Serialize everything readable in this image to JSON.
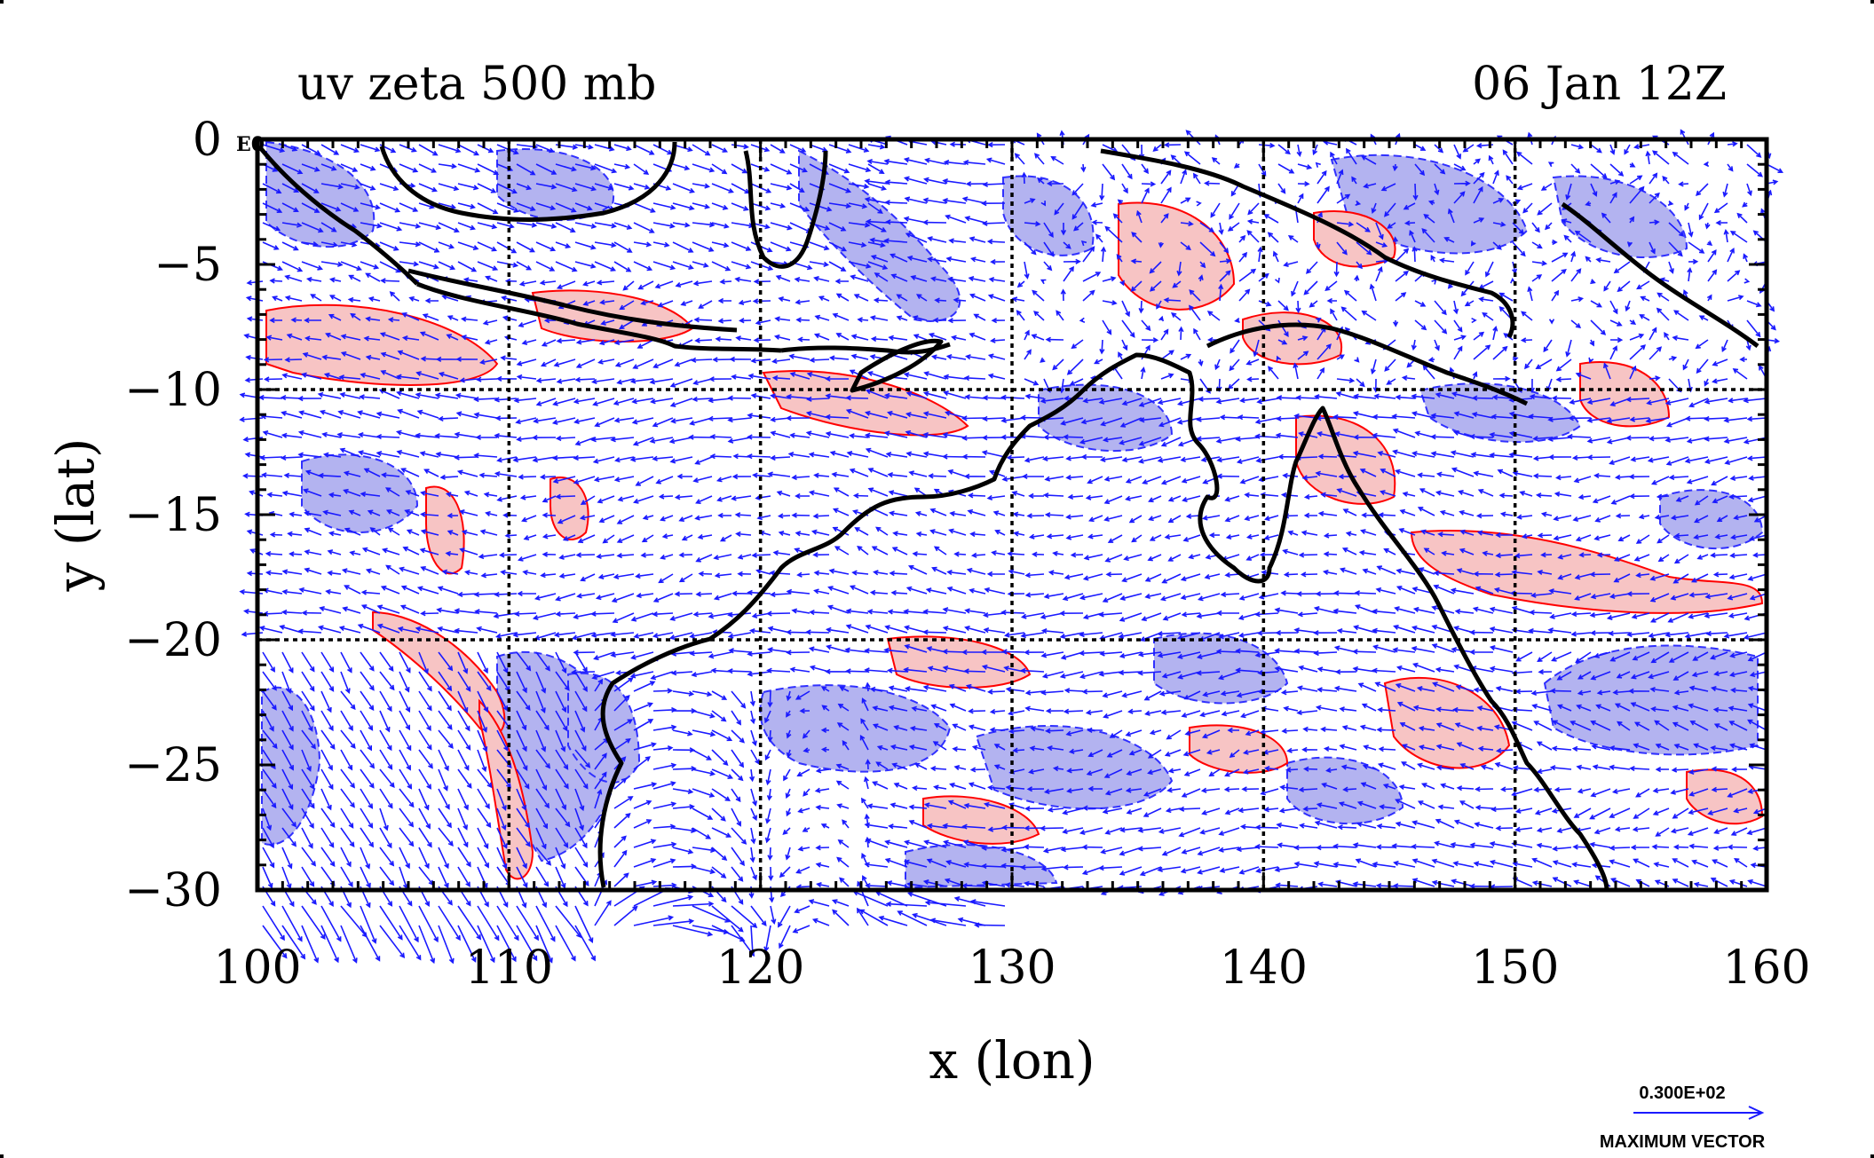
{
  "chart_data": {
    "type": "vector-contour-map",
    "title": "uv zeta 500 mb",
    "time_label": "06 Jan 12Z",
    "xlabel": "x (lon)",
    "ylabel": "y (lat)",
    "xlim": [
      100,
      160
    ],
    "ylim": [
      -30,
      0
    ],
    "x_ticks": [
      100,
      110,
      120,
      130,
      140,
      150,
      160
    ],
    "y_ticks": [
      0,
      -5,
      -10,
      -15,
      -20,
      -25,
      -30
    ],
    "x_tick_labels": [
      "100",
      "110",
      "120",
      "130",
      "140",
      "150",
      "160"
    ],
    "y_tick_labels": [
      "0",
      "−5",
      "−10",
      "−15",
      "−20",
      "−25",
      "−30"
    ],
    "grid_lon": [
      110,
      120,
      130,
      140,
      150
    ],
    "grid_lat": [
      -10,
      -20
    ],
    "corner_label": "E0",
    "legend": {
      "value_label": "0.300E+02",
      "caption": "MAXIMUM VECTOR"
    },
    "colors": {
      "positive_shade": "#f7c4c4",
      "positive_contour": "#ff0000",
      "negative_shade": "#b3b3f0",
      "negative_contour": "#0000ff",
      "vectors": "#1a1aff",
      "coastline": "#000000"
    }
  }
}
